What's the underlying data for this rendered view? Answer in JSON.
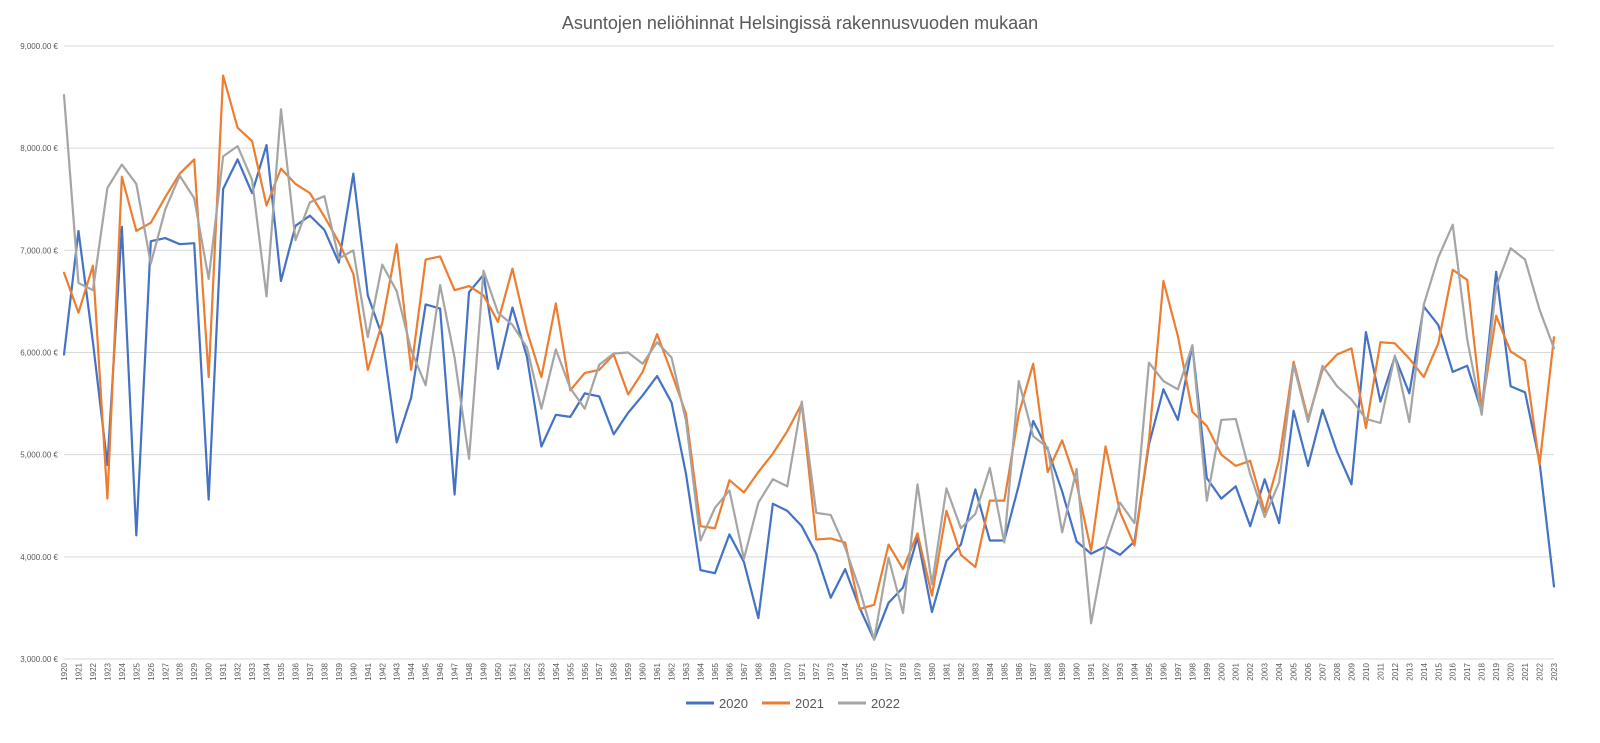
{
  "chart_data": {
    "type": "line",
    "title": "Asuntojen neliöhinnat Helsingissä rakennusvuoden mukaan",
    "xlabel": "",
    "ylabel": "",
    "ylim": [
      3000,
      9000
    ],
    "yticks": [
      3000,
      4000,
      5000,
      6000,
      7000,
      8000,
      9000
    ],
    "ytick_labels": [
      "3,000.00 €",
      "4,000.00 €",
      "5,000.00 €",
      "6,000.00 €",
      "7,000.00 €",
      "8,000.00 €",
      "9,000.00 €"
    ],
    "grid": true,
    "legend": "bottom",
    "x": [
      "1920",
      "1921",
      "1922",
      "1923",
      "1924",
      "1925",
      "1926",
      "1927",
      "1928",
      "1929",
      "1930",
      "1931",
      "1932",
      "1933",
      "1934",
      "1935",
      "1936",
      "1937",
      "1938",
      "1939",
      "1940",
      "1941",
      "1942",
      "1943",
      "1944",
      "1945",
      "1946",
      "1947",
      "1948",
      "1949",
      "1950",
      "1951",
      "1952",
      "1953",
      "1954",
      "1955",
      "1956",
      "1957",
      "1958",
      "1959",
      "1960",
      "1961",
      "1962",
      "1963",
      "1964",
      "1965",
      "1966",
      "1967",
      "1968",
      "1969",
      "1970",
      "1971",
      "1972",
      "1973",
      "1974",
      "1975",
      "1976",
      "1977",
      "1978",
      "1979",
      "1980",
      "1981",
      "1982",
      "1983",
      "1984",
      "1985",
      "1986",
      "1987",
      "1988",
      "1989",
      "1990",
      "1991",
      "1992",
      "1993",
      "1994",
      "1995",
      "1996",
      "1997",
      "1998",
      "1999",
      "2000",
      "2001",
      "2002",
      "2003",
      "2004",
      "2005",
      "2006",
      "2007",
      "2008",
      "2009",
      "2010",
      "2011",
      "2012",
      "2013",
      "2014",
      "2015",
      "2016",
      "2017",
      "2018",
      "2019",
      "2020",
      "2021",
      "2022",
      "2023"
    ],
    "series": [
      {
        "name": "2020",
        "color": "#4472c4",
        "values": [
          5980,
          7190,
          6100,
          4900,
          7230,
          4210,
          7090,
          7120,
          7060,
          7070,
          4560,
          7600,
          7890,
          7560,
          8030,
          6700,
          7240,
          7340,
          7200,
          6880,
          7750,
          6560,
          6160,
          5120,
          5560,
          6470,
          6430,
          4610,
          6590,
          6760,
          5840,
          6440,
          5960,
          5080,
          5390,
          5370,
          5600,
          5570,
          5200,
          5410,
          5580,
          5770,
          5510,
          4810,
          3870,
          3840,
          4220,
          3950,
          3400,
          4520,
          4450,
          4300,
          4030,
          3600,
          3880,
          3500,
          3190,
          3550,
          3700,
          4190,
          3460,
          3960,
          4120,
          4660,
          4160,
          4160,
          4700,
          5330,
          5050,
          4640,
          4150,
          4030,
          4100,
          4020,
          4150,
          5100,
          5640,
          5340,
          6070,
          4770,
          4570,
          4690,
          4300,
          4760,
          4330,
          5430,
          4890,
          5440,
          5030,
          4710,
          6200,
          5520,
          5960,
          5600,
          6450,
          6270,
          5810,
          5870,
          5420,
          6790,
          5670,
          5610,
          4930,
          3710
        ]
      },
      {
        "name": "2021",
        "color": "#ed7d31",
        "values": [
          6780,
          6390,
          6850,
          4570,
          7720,
          7190,
          7270,
          7520,
          7750,
          7890,
          5760,
          8710,
          8200,
          8070,
          7440,
          7800,
          7650,
          7560,
          7330,
          7080,
          6770,
          5830,
          6290,
          7060,
          5830,
          6910,
          6940,
          6610,
          6650,
          6560,
          6300,
          6820,
          6210,
          5760,
          6480,
          5630,
          5800,
          5830,
          5980,
          5590,
          5810,
          6180,
          5800,
          5400,
          4300,
          4280,
          4750,
          4630,
          4830,
          5010,
          5230,
          5500,
          4170,
          4180,
          4140,
          3490,
          3530,
          4120,
          3880,
          4230,
          3620,
          4450,
          4020,
          3900,
          4550,
          4550,
          5400,
          5890,
          4830,
          5140,
          4720,
          4060,
          5080,
          4440,
          4110,
          5140,
          6700,
          6160,
          5420,
          5280,
          5000,
          4890,
          4940,
          4440,
          4950,
          5910,
          5350,
          5830,
          5980,
          6040,
          5260,
          6100,
          6090,
          5940,
          5760,
          6090,
          6810,
          6710,
          5450,
          6360,
          6010,
          5920,
          4900,
          6150
        ]
      },
      {
        "name": "2022",
        "color": "#a5a5a5",
        "values": [
          8520,
          6680,
          6610,
          7610,
          7840,
          7650,
          6870,
          7400,
          7730,
          7510,
          6720,
          7920,
          8020,
          7690,
          6550,
          8380,
          7100,
          7470,
          7530,
          6920,
          7000,
          6150,
          6860,
          6600,
          6020,
          5680,
          6660,
          5950,
          4960,
          6800,
          6390,
          6270,
          6050,
          5450,
          6030,
          5650,
          5450,
          5880,
          5990,
          6000,
          5890,
          6100,
          5950,
          5330,
          4160,
          4480,
          4650,
          3980,
          4530,
          4760,
          4690,
          5520,
          4430,
          4410,
          4090,
          3680,
          3190,
          3990,
          3450,
          4710,
          3730,
          4670,
          4280,
          4420,
          4870,
          4140,
          5720,
          5180,
          5070,
          4240,
          4860,
          3350,
          4110,
          4530,
          4330,
          5900,
          5720,
          5640,
          6070,
          4550,
          5340,
          5350,
          4810,
          4390,
          4730,
          5880,
          5320,
          5870,
          5670,
          5540,
          5350,
          5310,
          5970,
          5320,
          6470,
          6930,
          7250,
          6130,
          5390,
          6640,
          7020,
          6910,
          6420,
          6040
        ]
      }
    ]
  }
}
